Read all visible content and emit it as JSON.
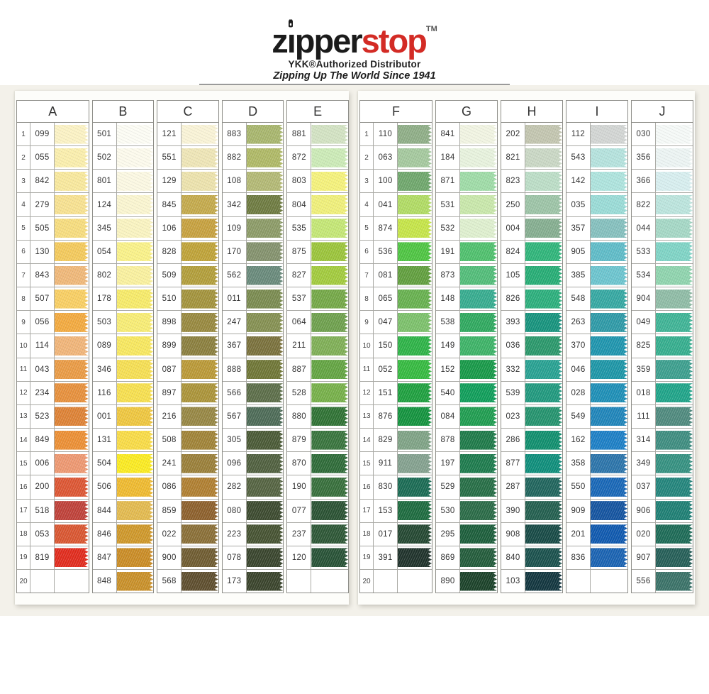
{
  "colors": {
    "brand_red": "#d32b25",
    "brand_black": "#1b1b1b"
  },
  "header": {
    "brand_part1": "z",
    "brand_part2": "pper",
    "brand_part3": "stop",
    "trademark": "TM",
    "subtitle": "YKK®Authorized Distributor",
    "tagline": "Zipping Up The World Since 1941"
  },
  "row_numbers": [
    1,
    2,
    3,
    4,
    5,
    6,
    7,
    8,
    9,
    10,
    11,
    12,
    13,
    14,
    15,
    16,
    17,
    18,
    19,
    20
  ],
  "panels": [
    {
      "columns": [
        {
          "letter": "A",
          "show_row_numbers": true,
          "rows": [
            {
              "code": "099",
              "color": "#FBF2C4"
            },
            {
              "code": "055",
              "color": "#FAEEAC"
            },
            {
              "code": "842",
              "color": "#F8E89C"
            },
            {
              "code": "279",
              "color": "#F7E190"
            },
            {
              "code": "505",
              "color": "#F6DC7D"
            },
            {
              "code": "130",
              "color": "#F3C95B"
            },
            {
              "code": "843",
              "color": "#EFB778"
            },
            {
              "code": "507",
              "color": "#F8CE62"
            },
            {
              "code": "056",
              "color": "#F2A93E"
            },
            {
              "code": "114",
              "color": "#F0B478"
            },
            {
              "code": "043",
              "color": "#E99A44"
            },
            {
              "code": "234",
              "color": "#E68F3B"
            },
            {
              "code": "523",
              "color": "#DD8134"
            },
            {
              "code": "849",
              "color": "#EB8E33"
            },
            {
              "code": "006",
              "color": "#ED9770"
            },
            {
              "code": "200",
              "color": "#DC5532"
            },
            {
              "code": "518",
              "color": "#BE4038"
            },
            {
              "code": "053",
              "color": "#D85530"
            },
            {
              "code": "819",
              "color": "#E02A1C"
            },
            {
              "code": "",
              "color": null
            }
          ]
        },
        {
          "letter": "B",
          "show_row_numbers": false,
          "rows": [
            {
              "code": "501",
              "color": "#FCFCF4"
            },
            {
              "code": "502",
              "color": "#FCFAEC"
            },
            {
              "code": "801",
              "color": "#FBF8E2"
            },
            {
              "code": "124",
              "color": "#FAF5D0"
            },
            {
              "code": "345",
              "color": "#F9F3C0"
            },
            {
              "code": "054",
              "color": "#F9F188"
            },
            {
              "code": "802",
              "color": "#F9F09E"
            },
            {
              "code": "178",
              "color": "#F6EA68"
            },
            {
              "code": "503",
              "color": "#F7EC74"
            },
            {
              "code": "089",
              "color": "#F7E75E"
            },
            {
              "code": "346",
              "color": "#F5DE52"
            },
            {
              "code": "116",
              "color": "#F6DF4E"
            },
            {
              "code": "001",
              "color": "#EEC63E"
            },
            {
              "code": "131",
              "color": "#F8DB45"
            },
            {
              "code": "504",
              "color": "#FAEA20"
            },
            {
              "code": "506",
              "color": "#EEB92E"
            },
            {
              "code": "844",
              "color": "#E2B94E"
            },
            {
              "code": "846",
              "color": "#CE9729"
            },
            {
              "code": "847",
              "color": "#C98B24"
            },
            {
              "code": "848",
              "color": "#C88F28"
            }
          ]
        },
        {
          "letter": "C",
          "show_row_numbers": false,
          "rows": [
            {
              "code": "121",
              "color": "#F9F3D6"
            },
            {
              "code": "551",
              "color": "#EEE5B6"
            },
            {
              "code": "129",
              "color": "#ECE2AC"
            },
            {
              "code": "845",
              "color": "#C3A94B"
            },
            {
              "code": "106",
              "color": "#C6A03E"
            },
            {
              "code": "828",
              "color": "#BEA237"
            },
            {
              "code": "509",
              "color": "#B19D39"
            },
            {
              "code": "510",
              "color": "#A2923B"
            },
            {
              "code": "898",
              "color": "#97883E"
            },
            {
              "code": "899",
              "color": "#8A7E3D"
            },
            {
              "code": "087",
              "color": "#B99836"
            },
            {
              "code": "897",
              "color": "#AA9338"
            },
            {
              "code": "216",
              "color": "#968643"
            },
            {
              "code": "508",
              "color": "#9F8236"
            },
            {
              "code": "241",
              "color": "#997E38"
            },
            {
              "code": "086",
              "color": "#AF7E30"
            },
            {
              "code": "859",
              "color": "#8C5F2B"
            },
            {
              "code": "022",
              "color": "#896E36"
            },
            {
              "code": "900",
              "color": "#6E5B30"
            },
            {
              "code": "568",
              "color": "#5D4D2D"
            }
          ]
        },
        {
          "letter": "D",
          "show_row_numbers": false,
          "rows": [
            {
              "code": "883",
              "color": "#A7B56C"
            },
            {
              "code": "882",
              "color": "#AEB865"
            },
            {
              "code": "108",
              "color": "#B2B874"
            },
            {
              "code": "342",
              "color": "#6D7A40"
            },
            {
              "code": "109",
              "color": "#8B9A66"
            },
            {
              "code": "170",
              "color": "#83916C"
            },
            {
              "code": "562",
              "color": "#68897A"
            },
            {
              "code": "011",
              "color": "#798A4F"
            },
            {
              "code": "247",
              "color": "#848F51"
            },
            {
              "code": "367",
              "color": "#79703B"
            },
            {
              "code": "888",
              "color": "#6E7535"
            },
            {
              "code": "566",
              "color": "#5B6D48"
            },
            {
              "code": "567",
              "color": "#4C6A56"
            },
            {
              "code": "305",
              "color": "#495935"
            },
            {
              "code": "096",
              "color": "#4F5F3E"
            },
            {
              "code": "282",
              "color": "#546341"
            },
            {
              "code": "080",
              "color": "#3B492E"
            },
            {
              "code": "223",
              "color": "#455231"
            },
            {
              "code": "078",
              "color": "#38442C"
            },
            {
              "code": "173",
              "color": "#39432B"
            }
          ]
        },
        {
          "letter": "E",
          "show_row_numbers": false,
          "rows": [
            {
              "code": "881",
              "color": "#D2E2C2"
            },
            {
              "code": "872",
              "color": "#CBEAB6"
            },
            {
              "code": "803",
              "color": "#F4F17A"
            },
            {
              "code": "804",
              "color": "#EFEF79"
            },
            {
              "code": "535",
              "color": "#C3E674"
            },
            {
              "code": "875",
              "color": "#9AC339"
            },
            {
              "code": "827",
              "color": "#A1CA3C"
            },
            {
              "code": "537",
              "color": "#73A746"
            },
            {
              "code": "064",
              "color": "#6D9F4C"
            },
            {
              "code": "211",
              "color": "#7EAE55"
            },
            {
              "code": "887",
              "color": "#62A341"
            },
            {
              "code": "528",
              "color": "#75AF48"
            },
            {
              "code": "880",
              "color": "#2E7133"
            },
            {
              "code": "879",
              "color": "#37733C"
            },
            {
              "code": "870",
              "color": "#2D6A37"
            },
            {
              "code": "190",
              "color": "#366E3A"
            },
            {
              "code": "077",
              "color": "#295132"
            },
            {
              "code": "237",
              "color": "#2C5635"
            },
            {
              "code": "120",
              "color": "#265135"
            },
            {
              "code": "",
              "color": null
            }
          ]
        }
      ]
    },
    {
      "columns": [
        {
          "letter": "F",
          "show_row_numbers": true,
          "rows": [
            {
              "code": "110",
              "color": "#8EAD86"
            },
            {
              "code": "063",
              "color": "#A4C89D"
            },
            {
              "code": "100",
              "color": "#6EA66B"
            },
            {
              "code": "041",
              "color": "#B0DB63"
            },
            {
              "code": "874",
              "color": "#C5E447"
            },
            {
              "code": "536",
              "color": "#4DC441"
            },
            {
              "code": "081",
              "color": "#609E3D"
            },
            {
              "code": "065",
              "color": "#66B04E"
            },
            {
              "code": "047",
              "color": "#7BC06A"
            },
            {
              "code": "150",
              "color": "#2CB246"
            },
            {
              "code": "052",
              "color": "#34B93F"
            },
            {
              "code": "151",
              "color": "#1D9F3E"
            },
            {
              "code": "876",
              "color": "#12923D"
            },
            {
              "code": "829",
              "color": "#7EA285"
            },
            {
              "code": "911",
              "color": "#83A08E"
            },
            {
              "code": "830",
              "color": "#196A53"
            },
            {
              "code": "153",
              "color": "#1C6A3E"
            },
            {
              "code": "017",
              "color": "#234731"
            },
            {
              "code": "391",
              "color": "#1E312A"
            },
            {
              "code": "",
              "color": null
            }
          ]
        },
        {
          "letter": "G",
          "show_row_numbers": false,
          "rows": [
            {
              "code": "841",
              "color": "#F1F4E2"
            },
            {
              "code": "184",
              "color": "#E7F2DD"
            },
            {
              "code": "871",
              "color": "#9EDBA6"
            },
            {
              "code": "531",
              "color": "#C8E7AA"
            },
            {
              "code": "532",
              "color": "#DEEFCE"
            },
            {
              "code": "191",
              "color": "#4EBF6C"
            },
            {
              "code": "873",
              "color": "#51BC78"
            },
            {
              "code": "148",
              "color": "#35AB8E"
            },
            {
              "code": "538",
              "color": "#2EA85E"
            },
            {
              "code": "149",
              "color": "#3CB266"
            },
            {
              "code": "152",
              "color": "#169847"
            },
            {
              "code": "540",
              "color": "#0E9D59"
            },
            {
              "code": "084",
              "color": "#1E9C4F"
            },
            {
              "code": "878",
              "color": "#1D7948"
            },
            {
              "code": "197",
              "color": "#1C7A4C"
            },
            {
              "code": "529",
              "color": "#256D45"
            },
            {
              "code": "530",
              "color": "#296A46"
            },
            {
              "code": "295",
              "color": "#1B5D3A"
            },
            {
              "code": "869",
              "color": "#225B3A"
            },
            {
              "code": "890",
              "color": "#1A4128"
            }
          ]
        },
        {
          "letter": "H",
          "show_row_numbers": false,
          "rows": [
            {
              "code": "202",
              "color": "#C2C5AF"
            },
            {
              "code": "821",
              "color": "#C9D7C4"
            },
            {
              "code": "823",
              "color": "#BBDDC6"
            },
            {
              "code": "250",
              "color": "#9CC3A6"
            },
            {
              "code": "004",
              "color": "#84AD8F"
            },
            {
              "code": "824",
              "color": "#2EB479"
            },
            {
              "code": "105",
              "color": "#25AC74"
            },
            {
              "code": "826",
              "color": "#2AAE7B"
            },
            {
              "code": "393",
              "color": "#15927C"
            },
            {
              "code": "036",
              "color": "#29976A"
            },
            {
              "code": "332",
              "color": "#26A091"
            },
            {
              "code": "539",
              "color": "#1F987D"
            },
            {
              "code": "023",
              "color": "#23926D"
            },
            {
              "code": "286",
              "color": "#0F8E6D"
            },
            {
              "code": "877",
              "color": "#0D8D7A"
            },
            {
              "code": "287",
              "color": "#1F645C"
            },
            {
              "code": "390",
              "color": "#225E4E"
            },
            {
              "code": "908",
              "color": "#164945"
            },
            {
              "code": "840",
              "color": "#19504C"
            },
            {
              "code": "103",
              "color": "#11353E"
            }
          ]
        },
        {
          "letter": "I",
          "show_row_numbers": false,
          "rows": [
            {
              "code": "112",
              "color": "#D2D5D3"
            },
            {
              "code": "543",
              "color": "#B4E2DD"
            },
            {
              "code": "142",
              "color": "#ADE3DD"
            },
            {
              "code": "035",
              "color": "#99DBD6"
            },
            {
              "code": "357",
              "color": "#84BFBD"
            },
            {
              "code": "905",
              "color": "#5EBBC7"
            },
            {
              "code": "385",
              "color": "#6BC4CE"
            },
            {
              "code": "548",
              "color": "#34A7A1"
            },
            {
              "code": "263",
              "color": "#2D99A6"
            },
            {
              "code": "370",
              "color": "#1D94AD"
            },
            {
              "code": "046",
              "color": "#1C95A6"
            },
            {
              "code": "028",
              "color": "#1C8EB6"
            },
            {
              "code": "549",
              "color": "#1E84B9"
            },
            {
              "code": "162",
              "color": "#1B7EC5"
            },
            {
              "code": "358",
              "color": "#2A73A9"
            },
            {
              "code": "550",
              "color": "#1766B6"
            },
            {
              "code": "909",
              "color": "#13539F"
            },
            {
              "code": "201",
              "color": "#0E58AE"
            },
            {
              "code": "836",
              "color": "#1962B1"
            },
            {
              "code": "",
              "color": null
            }
          ]
        },
        {
          "letter": "J",
          "show_row_numbers": false,
          "rows": [
            {
              "code": "030",
              "color": "#F5F9F7"
            },
            {
              "code": "356",
              "color": "#ECF4F3"
            },
            {
              "code": "366",
              "color": "#D7EEEF"
            },
            {
              "code": "822",
              "color": "#BBE4DD"
            },
            {
              "code": "044",
              "color": "#A4D7C5"
            },
            {
              "code": "533",
              "color": "#7ED3C5"
            },
            {
              "code": "534",
              "color": "#8ED3AD"
            },
            {
              "code": "904",
              "color": "#8EBBA5"
            },
            {
              "code": "049",
              "color": "#3EB395"
            },
            {
              "code": "825",
              "color": "#34AD8D"
            },
            {
              "code": "359",
              "color": "#3B9E8D"
            },
            {
              "code": "018",
              "color": "#1EA388"
            },
            {
              "code": "111",
              "color": "#4E897D"
            },
            {
              "code": "314",
              "color": "#3D8C7F"
            },
            {
              "code": "349",
              "color": "#349080"
            },
            {
              "code": "037",
              "color": "#22847B"
            },
            {
              "code": "906",
              "color": "#1D7E73"
            },
            {
              "code": "020",
              "color": "#1C6A56"
            },
            {
              "code": "907",
              "color": "#245E57"
            },
            {
              "code": "556",
              "color": "#397167"
            }
          ]
        }
      ]
    }
  ]
}
